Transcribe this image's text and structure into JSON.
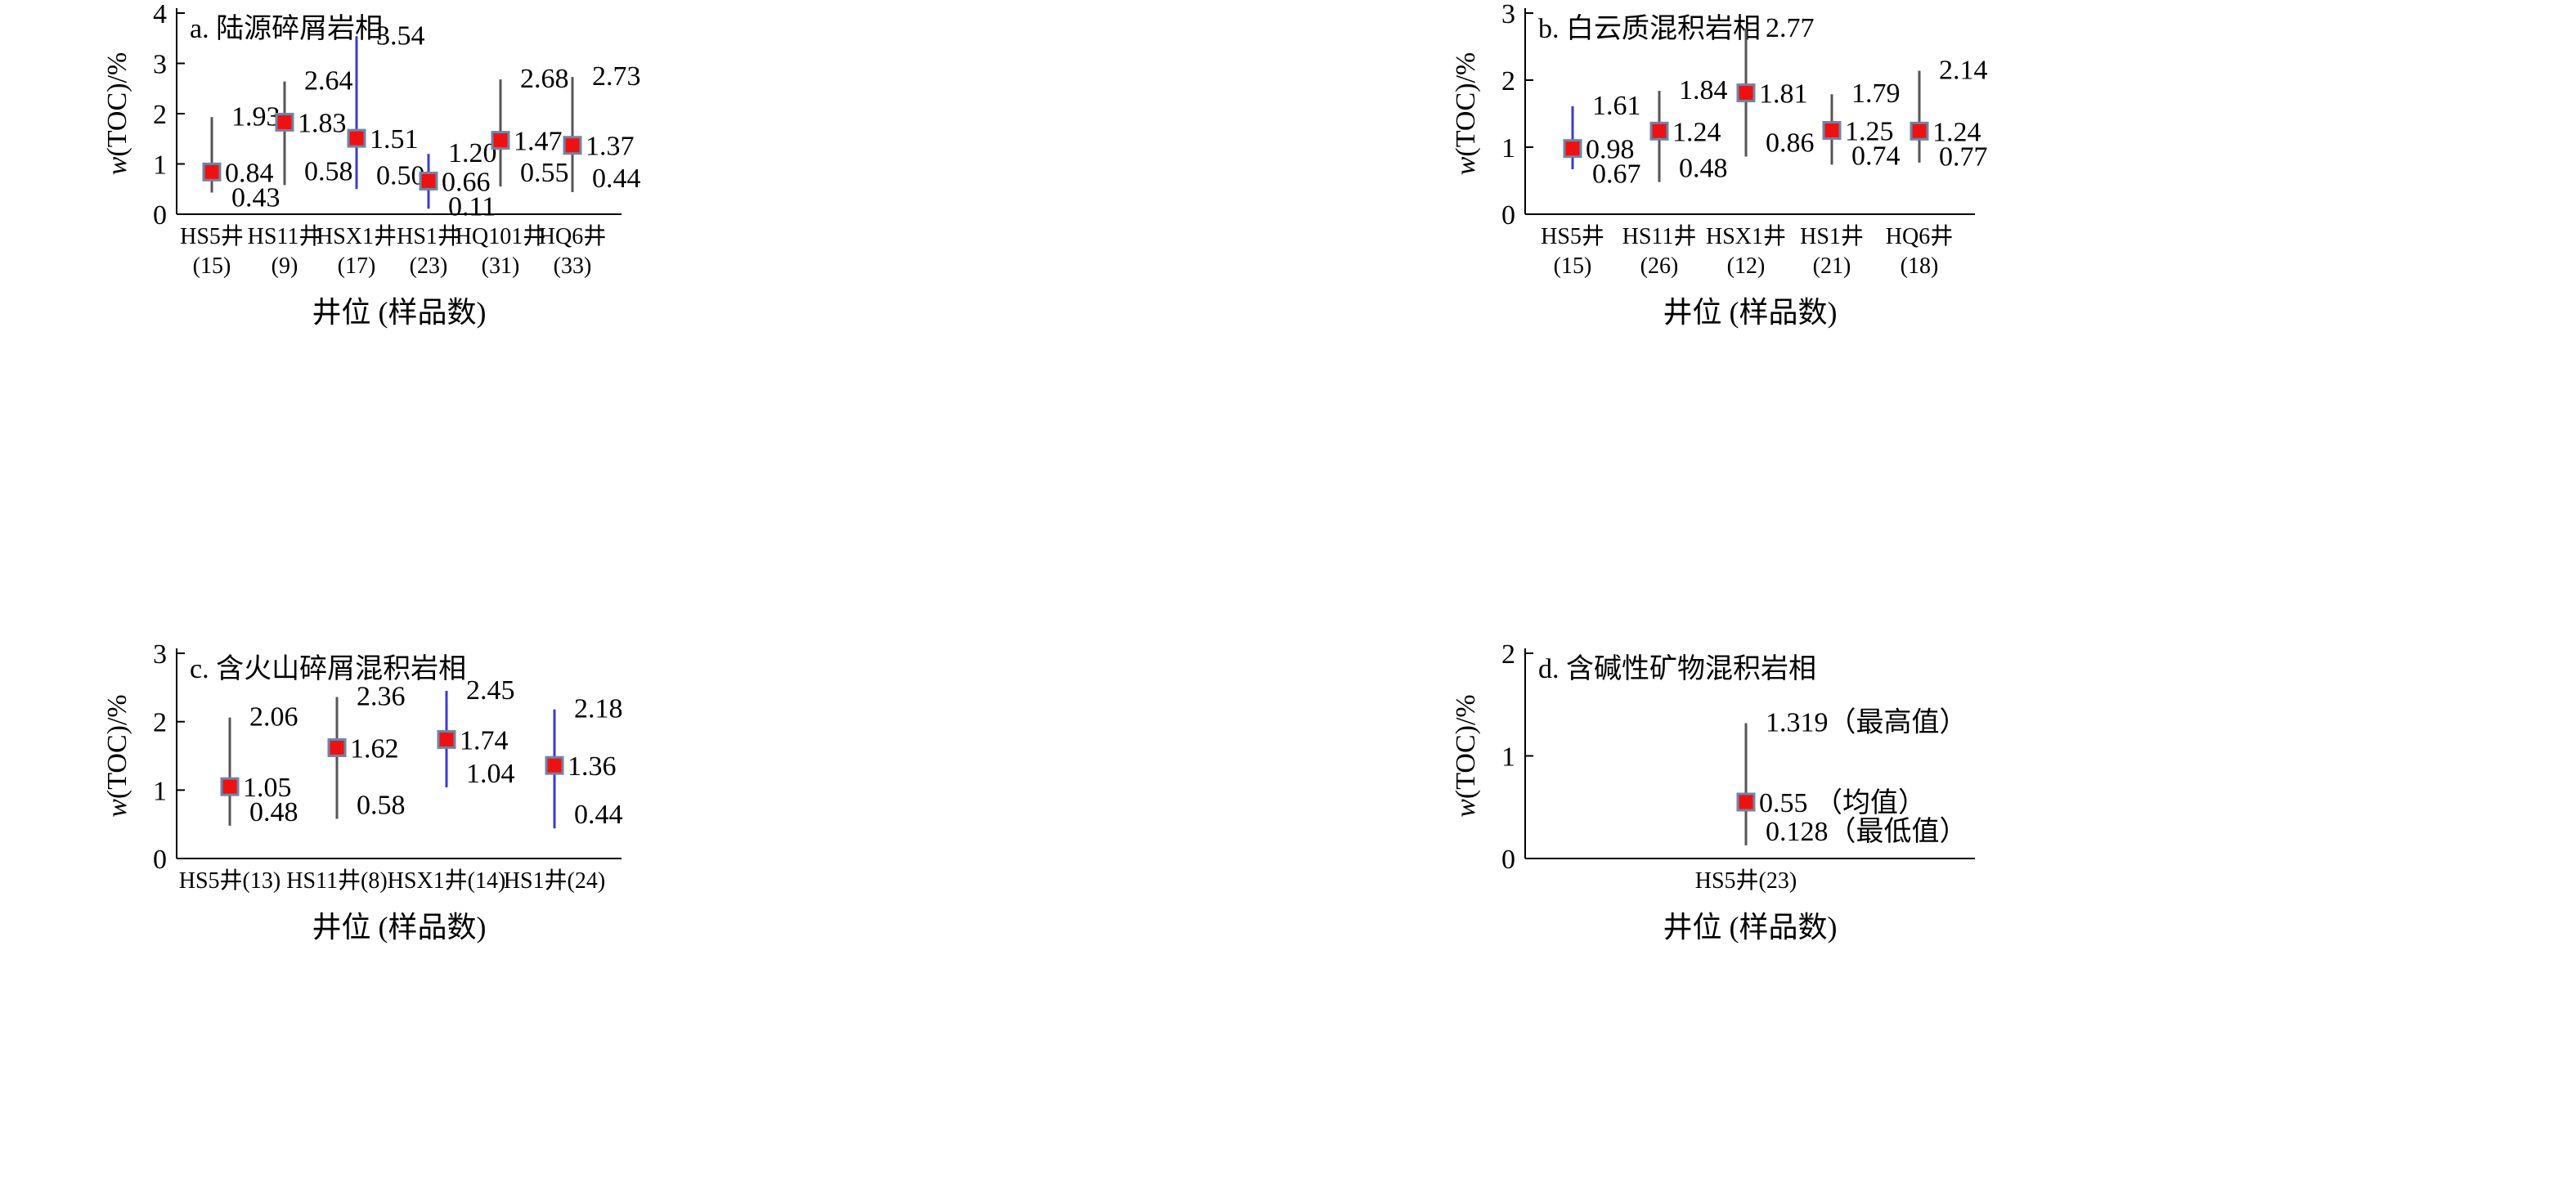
{
  "chart_data": [
    {
      "type": "range",
      "title": "a. 陆源碎屑岩相",
      "ylabel_var": "w",
      "ylabel_rest": "(TOC)/%",
      "xlabel": "井位 (样品数)",
      "ylim": [
        0,
        4
      ],
      "yticks": [
        "0",
        "1",
        "2",
        "3",
        "4"
      ],
      "points": [
        {
          "well": "HS5井",
          "count": "(15)",
          "max": 1.93,
          "mean": 0.84,
          "min": 0.43,
          "max_label": "1.93",
          "mean_label": "0.84",
          "min_label": "0.43",
          "line_color": "#555555"
        },
        {
          "well": "HS11井",
          "count": "(9)",
          "max": 2.64,
          "mean": 1.83,
          "min": 0.58,
          "max_label": "2.64",
          "mean_label": "1.83",
          "min_label": "0.58",
          "line_color": "#555555"
        },
        {
          "well": "HSX1井",
          "count": "(17)",
          "max": 3.54,
          "mean": 1.51,
          "min": 0.5,
          "max_label": "3.54",
          "mean_label": "1.51",
          "min_label": "0.50",
          "line_color": "#3c3cc8"
        },
        {
          "well": "HS1井",
          "count": "(23)",
          "max": 1.2,
          "mean": 0.66,
          "min": 0.11,
          "max_label": "1.20",
          "mean_label": "0.66",
          "min_label": "0.11",
          "line_color": "#3c3cc8"
        },
        {
          "well": "HQ101井",
          "count": "(31)",
          "max": 2.68,
          "mean": 1.47,
          "min": 0.55,
          "max_label": "2.68",
          "mean_label": "1.47",
          "min_label": "0.55",
          "line_color": "#555555"
        },
        {
          "well": "HQ6井",
          "count": "(33)",
          "max": 2.73,
          "mean": 1.37,
          "min": 0.44,
          "max_label": "2.73",
          "mean_label": "1.37",
          "min_label": "0.44",
          "line_color": "#555555"
        }
      ]
    },
    {
      "type": "range",
      "title": "b. 白云质混积岩相",
      "ylabel_var": "w",
      "ylabel_rest": "(TOC)/%",
      "xlabel": "井位 (样品数)",
      "ylim": [
        0,
        3
      ],
      "yticks": [
        "0",
        "1",
        "2",
        "3"
      ],
      "points": [
        {
          "well": "HS5井",
          "count": "(15)",
          "max": 1.61,
          "mean": 0.98,
          "min": 0.67,
          "max_label": "1.61",
          "mean_label": "0.98",
          "min_label": "0.67",
          "line_color": "#3c3cc8"
        },
        {
          "well": "HS11井",
          "count": "(26)",
          "max": 1.84,
          "mean": 1.24,
          "min": 0.48,
          "max_label": "1.84",
          "mean_label": "1.24",
          "min_label": "0.48",
          "line_color": "#555555"
        },
        {
          "well": "HSX1井",
          "count": "(12)",
          "max": 2.77,
          "mean": 1.81,
          "min": 0.86,
          "max_label": "2.77",
          "mean_label": "1.81",
          "min_label": "0.86",
          "line_color": "#555555"
        },
        {
          "well": "HS1井",
          "count": "(21)",
          "max": 1.79,
          "mean": 1.25,
          "min": 0.74,
          "max_label": "1.79",
          "mean_label": "1.25",
          "min_label": "0.74",
          "line_color": "#555555"
        },
        {
          "well": "HQ6井",
          "count": "(18)",
          "max": 2.14,
          "mean": 1.24,
          "min": 0.77,
          "max_label": "2.14",
          "mean_label": "1.24",
          "min_label": "0.77",
          "line_color": "#555555"
        }
      ]
    },
    {
      "type": "range",
      "title": "c. 含火山碎屑混积岩相",
      "ylabel_var": "w",
      "ylabel_rest": "(TOC)/%",
      "xlabel": "井位 (样品数)",
      "ylim": [
        0,
        3
      ],
      "yticks": [
        "0",
        "1",
        "2",
        "3"
      ],
      "points": [
        {
          "well": "HS5井(13)",
          "max": 2.06,
          "mean": 1.05,
          "min": 0.48,
          "max_label": "2.06",
          "mean_label": "1.05",
          "min_label": "0.48",
          "line_color": "#555555"
        },
        {
          "well": "HS11井(8)",
          "max": 2.36,
          "mean": 1.62,
          "min": 0.58,
          "max_label": "2.36",
          "mean_label": "1.62",
          "min_label": "0.58",
          "line_color": "#555555"
        },
        {
          "well": "HSX1井(14)",
          "max": 2.45,
          "mean": 1.74,
          "min": 1.04,
          "max_label": "2.45",
          "mean_label": "1.74",
          "min_label": "1.04",
          "line_color": "#3c3cc8"
        },
        {
          "well": "HS1井(24)",
          "max": 2.18,
          "mean": 1.36,
          "min": 0.44,
          "max_label": "2.18",
          "mean_label": "1.36",
          "min_label": "0.44",
          "line_color": "#3c3cc8"
        }
      ]
    },
    {
      "type": "range",
      "title": "d. 含碱性矿物混积岩相",
      "ylabel_var": "w",
      "ylabel_rest": "(TOC)/%",
      "xlabel": "井位 (样品数)",
      "ylim": [
        0,
        2
      ],
      "yticks": [
        "0",
        "1",
        "2"
      ],
      "points": [
        {
          "well": "HS5井(23)",
          "max": 1.319,
          "mean": 0.55,
          "min": 0.128,
          "max_label": "1.319（最高值）",
          "mean_label": "0.55 （均值）",
          "min_label": "0.128（最低值）",
          "line_color": "#555555"
        }
      ]
    }
  ],
  "colors": {
    "marker_fill": "#ee1111",
    "marker_border": "#6d86a8",
    "axis": "#000000"
  }
}
